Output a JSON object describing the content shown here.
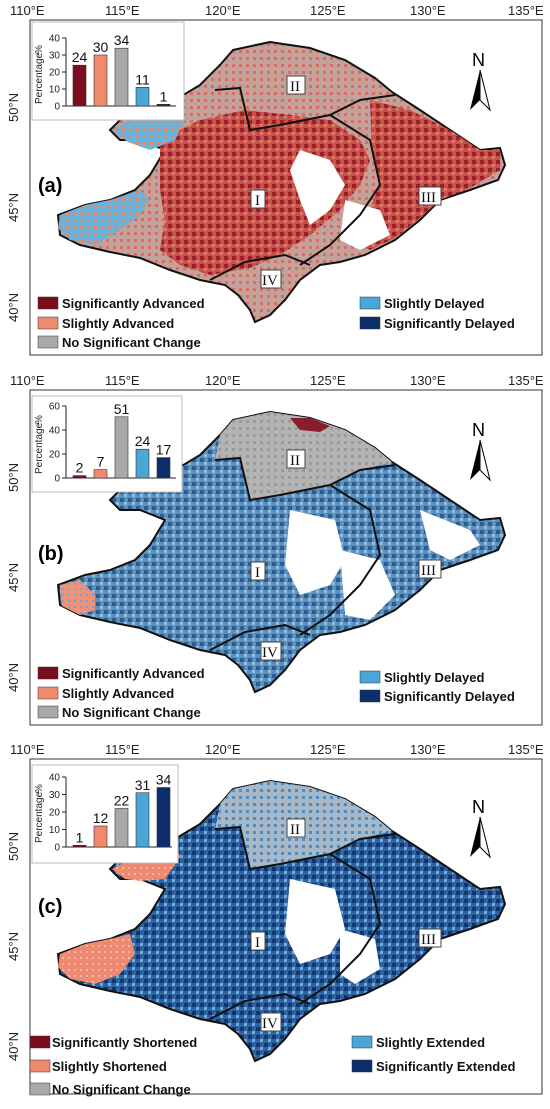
{
  "axes": {
    "lon_ticks": [
      "110°E",
      "115°E",
      "120°E",
      "125°E",
      "130°E",
      "135°E"
    ],
    "lat_ticks": [
      "50°N",
      "45°N",
      "40°N"
    ]
  },
  "regions": [
    "I",
    "II",
    "III",
    "IV"
  ],
  "north_label": "N",
  "colors": {
    "sig_advanced": "#7b0d1e",
    "sl_advanced": "#f08a6e",
    "no_change": "#a9a9a9",
    "sl_delayed": "#4aa6d6",
    "sig_delayed": "#0d2e6b"
  },
  "panels": [
    {
      "letter": "(a)",
      "inset": {
        "ylabel": "Percentage",
        "unit": "%",
        "yticks": [
          "0",
          "10",
          "20",
          "30",
          "40"
        ],
        "ymax": 40
      },
      "legend": {
        "left": [
          "Significantly Advanced",
          "Slightly Advanced",
          "No Significant Change"
        ],
        "right": [
          "Slightly Delayed",
          "Significantly Delayed"
        ]
      }
    },
    {
      "letter": "(b)",
      "inset": {
        "ylabel": "Percentage",
        "unit": "%",
        "yticks": [
          "0",
          "20",
          "40",
          "60"
        ],
        "ymax": 60
      },
      "legend": {
        "left": [
          "Significantly Advanced",
          "Slightly Advanced",
          "No Significant Change"
        ],
        "right": [
          "Slightly Delayed",
          "Significantly Delayed"
        ]
      }
    },
    {
      "letter": "(c)",
      "inset": {
        "ylabel": "Percentage",
        "unit": "%",
        "yticks": [
          "0",
          "10",
          "20",
          "30",
          "40"
        ],
        "ymax": 40
      },
      "legend": {
        "left": [
          "Significantly Shortened",
          "Slightly Shortened",
          "No Significant Change"
        ],
        "right": [
          "Slightly Extended",
          "Significantly Extended"
        ]
      }
    }
  ],
  "chart_data": [
    {
      "type": "bar",
      "panel": "(a)",
      "values": [
        24,
        30,
        34,
        11,
        1
      ],
      "ylim": [
        0,
        40
      ],
      "ylabel": "Percentage"
    },
    {
      "type": "bar",
      "panel": "(b)",
      "values": [
        2,
        7,
        51,
        24,
        17
      ],
      "ylim": [
        0,
        60
      ],
      "ylabel": "Percentage"
    },
    {
      "type": "bar",
      "panel": "(c)",
      "values": [
        1,
        12,
        22,
        31,
        34
      ],
      "ylim": [
        0,
        40
      ],
      "ylabel": "Percentage"
    }
  ]
}
